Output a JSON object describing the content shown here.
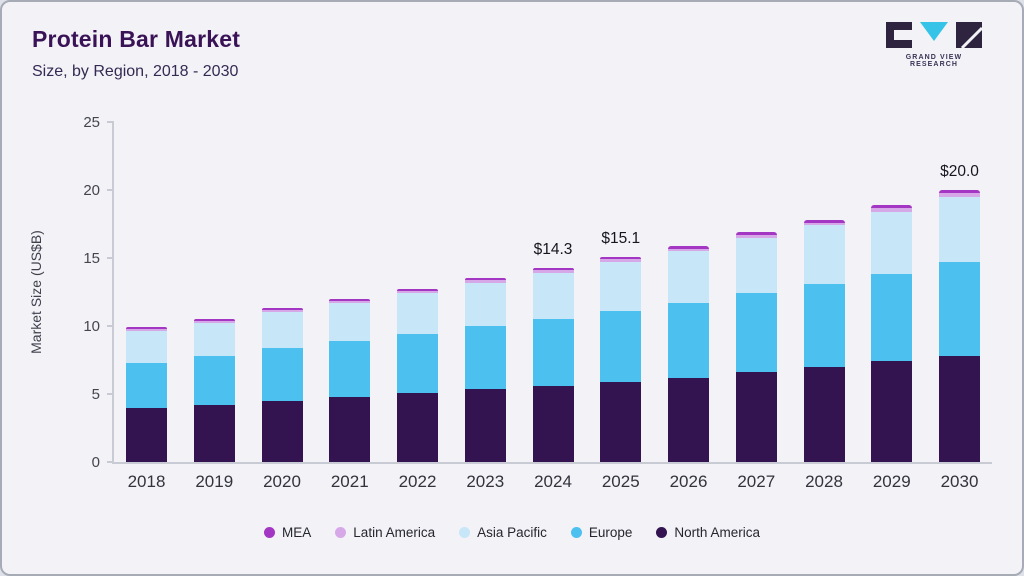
{
  "header": {
    "title": "Protein Bar Market",
    "subtitle": "Size, by Region, 2018 - 2030"
  },
  "logo": {
    "brand_text": "GRAND VIEW RESEARCH",
    "accent_color": "#35c4e8",
    "dark_color": "#2e2440"
  },
  "chart_data": {
    "type": "bar",
    "stacked": true,
    "title": "Protein Bar Market Size, by Region, 2018 - 2030",
    "xlabel": "",
    "ylabel": "Market Size (US$B)",
    "ylim": [
      0,
      25
    ],
    "yticks": [
      0,
      5,
      10,
      15,
      20,
      25
    ],
    "grid": false,
    "legend_position": "bottom",
    "categories": [
      "2018",
      "2019",
      "2020",
      "2021",
      "2022",
      "2023",
      "2024",
      "2025",
      "2026",
      "2027",
      "2028",
      "2029",
      "2030"
    ],
    "series": [
      {
        "name": "North America",
        "color": "#331450",
        "values": [
          4.0,
          4.2,
          4.5,
          4.8,
          5.1,
          5.4,
          5.6,
          5.9,
          6.2,
          6.6,
          7.0,
          7.4,
          7.8
        ]
      },
      {
        "name": "Europe",
        "color": "#4cc1f0",
        "values": [
          3.3,
          3.6,
          3.9,
          4.1,
          4.3,
          4.6,
          4.9,
          5.2,
          5.5,
          5.8,
          6.1,
          6.4,
          6.9
        ]
      },
      {
        "name": "Asia Pacific",
        "color": "#c7e7f8",
        "values": [
          2.3,
          2.4,
          2.6,
          2.8,
          3.0,
          3.2,
          3.4,
          3.6,
          3.8,
          4.1,
          4.3,
          4.6,
          4.8
        ]
      },
      {
        "name": "Latin America",
        "color": "#d7a8e8",
        "values": [
          0.15,
          0.15,
          0.15,
          0.15,
          0.15,
          0.15,
          0.2,
          0.2,
          0.2,
          0.2,
          0.2,
          0.25,
          0.25
        ]
      },
      {
        "name": "MEA",
        "color": "#a436c4",
        "values": [
          0.15,
          0.15,
          0.15,
          0.15,
          0.15,
          0.15,
          0.2,
          0.2,
          0.2,
          0.2,
          0.2,
          0.25,
          0.25
        ]
      }
    ],
    "totals": [
      9.9,
      10.5,
      11.3,
      12.0,
      12.7,
      13.5,
      14.3,
      15.1,
      15.9,
      16.9,
      17.8,
      18.9,
      20.0
    ],
    "total_labels": {
      "2024": "$14.3",
      "2025": "$15.1",
      "2030": "$20.0"
    },
    "legend": [
      "MEA",
      "Latin America",
      "Asia Pacific",
      "Europe",
      "North America"
    ]
  }
}
